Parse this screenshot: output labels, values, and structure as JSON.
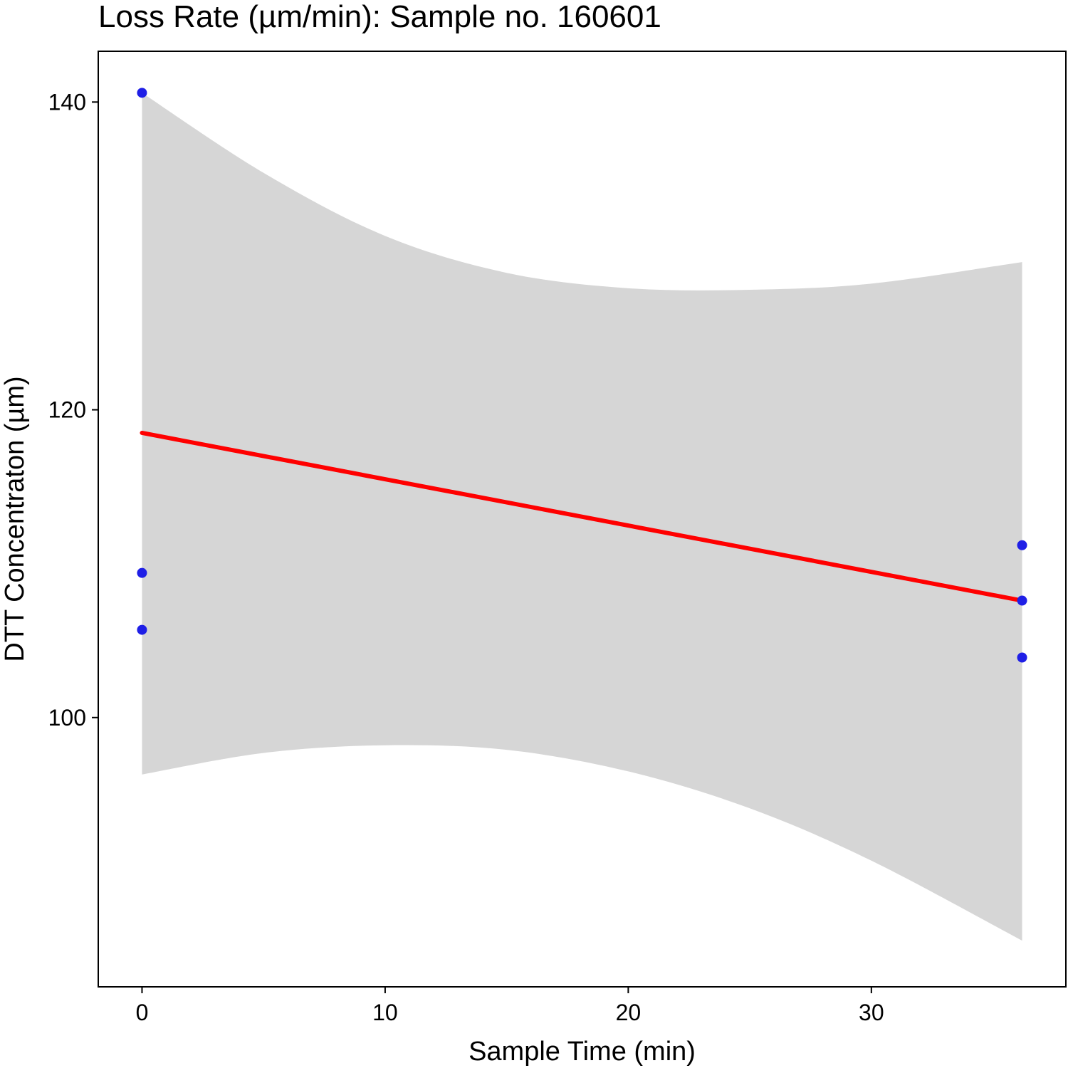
{
  "chart_data": {
    "type": "scatter",
    "title": "Loss Rate (µm/min): Sample no. 160601",
    "xlabel": "Sample Time (min)",
    "ylabel": "DTT Concentraton (µm)",
    "xlim": [
      -1.8,
      38
    ],
    "ylim": [
      82.5,
      143.3
    ],
    "x_ticks": [
      0,
      10,
      20,
      30
    ],
    "y_ticks": [
      100,
      120,
      140
    ],
    "x_tick_labels": [
      "0",
      "10",
      "20",
      "30"
    ],
    "y_tick_labels": [
      "100",
      "120",
      "140"
    ],
    "grid": false,
    "legend": "none",
    "series": [
      {
        "type": "scatter",
        "color": "#1f1fe6",
        "points": [
          {
            "x": 0,
            "y": 140.6
          },
          {
            "x": 0,
            "y": 109.4
          },
          {
            "x": 0,
            "y": 105.7
          },
          {
            "x": 36.2,
            "y": 111.2
          },
          {
            "x": 36.2,
            "y": 107.6
          },
          {
            "x": 36.2,
            "y": 103.9
          }
        ]
      },
      {
        "type": "line",
        "color": "#ff0000",
        "points": [
          {
            "x": 0,
            "y": 118.5
          },
          {
            "x": 36.2,
            "y": 107.6
          }
        ]
      },
      {
        "type": "band",
        "color": "#d6d6d6",
        "x": [
          0,
          5,
          10,
          15,
          20,
          25,
          30,
          36.2
        ],
        "upper": [
          140.6,
          135.4,
          131.3,
          128.9,
          127.9,
          127.8,
          128.2,
          129.6
        ],
        "lower": [
          96.3,
          97.7,
          98.2,
          97.9,
          96.5,
          94.1,
          90.7,
          85.5
        ]
      }
    ]
  }
}
